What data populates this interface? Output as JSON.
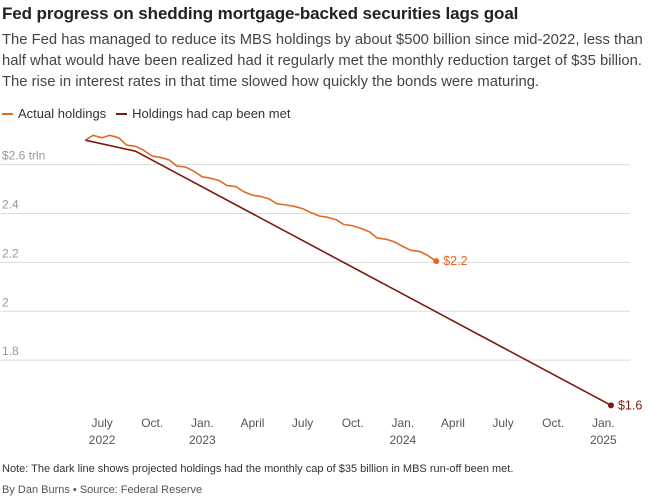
{
  "title": "Fed progress on shedding mortgage-backed securities lags goal",
  "subtitle": "The Fed has managed to reduce its MBS holdings by about $500 billion since mid-2022, less than half what would have been realized had it regularly met the monthly reduction target of $35 billion. The rise in interest rates in that time slowed how quickly the bonds were maturing.",
  "note": "Note: The dark line shows projected holdings had the monthly cap of $35 billion in MBS run-off been met.",
  "credit": "By Dan Burns • Source: Federal Reserve",
  "colors": {
    "actual": "#e0692a",
    "cap": "#7a1a10",
    "grid": "#dcdcdc",
    "tick": "#999999"
  },
  "chart_data": {
    "type": "line",
    "x_unit": "month",
    "ylim": [
      1.6,
      2.75
    ],
    "xlim": [
      "2022-04",
      "2025-02"
    ],
    "grid": "horizontal",
    "legend_position": "top-left",
    "y_ticks": [
      {
        "value": 2.6,
        "label": "$2.6 trln"
      },
      {
        "value": 2.4,
        "label": "2.4"
      },
      {
        "value": 2.2,
        "label": "2.2"
      },
      {
        "value": 2.0,
        "label": "2"
      },
      {
        "value": 1.8,
        "label": "1.8"
      }
    ],
    "x_ticks": [
      {
        "date": "2022-07",
        "label": "July",
        "sublabel": "2022"
      },
      {
        "date": "2022-10",
        "label": "Oct.",
        "sublabel": ""
      },
      {
        "date": "2023-01",
        "label": "Jan.",
        "sublabel": "2023"
      },
      {
        "date": "2023-04",
        "label": "April",
        "sublabel": ""
      },
      {
        "date": "2023-07",
        "label": "July",
        "sublabel": ""
      },
      {
        "date": "2023-10",
        "label": "Oct.",
        "sublabel": ""
      },
      {
        "date": "2024-01",
        "label": "Jan.",
        "sublabel": "2024"
      },
      {
        "date": "2024-04",
        "label": "April",
        "sublabel": ""
      },
      {
        "date": "2024-07",
        "label": "July",
        "sublabel": ""
      },
      {
        "date": "2024-10",
        "label": "Oct.",
        "sublabel": ""
      },
      {
        "date": "2025-01",
        "label": "Jan.",
        "sublabel": "2025"
      }
    ],
    "series": [
      {
        "name": "Actual holdings",
        "color": "#e0692a",
        "end_label": "$2.2",
        "points": [
          [
            "2022-06-01",
            2.7
          ],
          [
            "2022-06-15",
            2.72
          ],
          [
            "2022-07-01",
            2.71
          ],
          [
            "2022-07-15",
            2.72
          ],
          [
            "2022-08-01",
            2.71
          ],
          [
            "2022-08-15",
            2.68
          ],
          [
            "2022-09-01",
            2.675
          ],
          [
            "2022-09-15",
            2.66
          ],
          [
            "2022-10-01",
            2.635
          ],
          [
            "2022-10-15",
            2.63
          ],
          [
            "2022-11-01",
            2.62
          ],
          [
            "2022-11-15",
            2.595
          ],
          [
            "2022-12-01",
            2.59
          ],
          [
            "2022-12-15",
            2.575
          ],
          [
            "2023-01-01",
            2.55
          ],
          [
            "2023-01-15",
            2.545
          ],
          [
            "2023-02-01",
            2.535
          ],
          [
            "2023-02-15",
            2.515
          ],
          [
            "2023-03-01",
            2.51
          ],
          [
            "2023-03-15",
            2.49
          ],
          [
            "2023-04-01",
            2.475
          ],
          [
            "2023-04-15",
            2.47
          ],
          [
            "2023-05-01",
            2.46
          ],
          [
            "2023-05-15",
            2.44
          ],
          [
            "2023-06-01",
            2.435
          ],
          [
            "2023-06-15",
            2.43
          ],
          [
            "2023-07-01",
            2.42
          ],
          [
            "2023-07-15",
            2.405
          ],
          [
            "2023-08-01",
            2.39
          ],
          [
            "2023-08-15",
            2.385
          ],
          [
            "2023-09-01",
            2.375
          ],
          [
            "2023-09-15",
            2.355
          ],
          [
            "2023-10-01",
            2.35
          ],
          [
            "2023-10-15",
            2.34
          ],
          [
            "2023-11-01",
            2.325
          ],
          [
            "2023-11-15",
            2.3
          ],
          [
            "2023-12-01",
            2.295
          ],
          [
            "2023-12-15",
            2.285
          ],
          [
            "2024-01-01",
            2.265
          ],
          [
            "2024-01-15",
            2.25
          ],
          [
            "2024-02-01",
            2.245
          ],
          [
            "2024-02-15",
            2.23
          ],
          [
            "2024-03-01",
            2.205
          ]
        ]
      },
      {
        "name": "Holdings had cap been met",
        "color": "#7a1a10",
        "end_label": "$1.6",
        "points": [
          [
            "2022-06-01",
            2.7
          ],
          [
            "2022-09-01",
            2.655
          ],
          [
            "2025-01-15",
            1.615
          ]
        ]
      }
    ]
  }
}
